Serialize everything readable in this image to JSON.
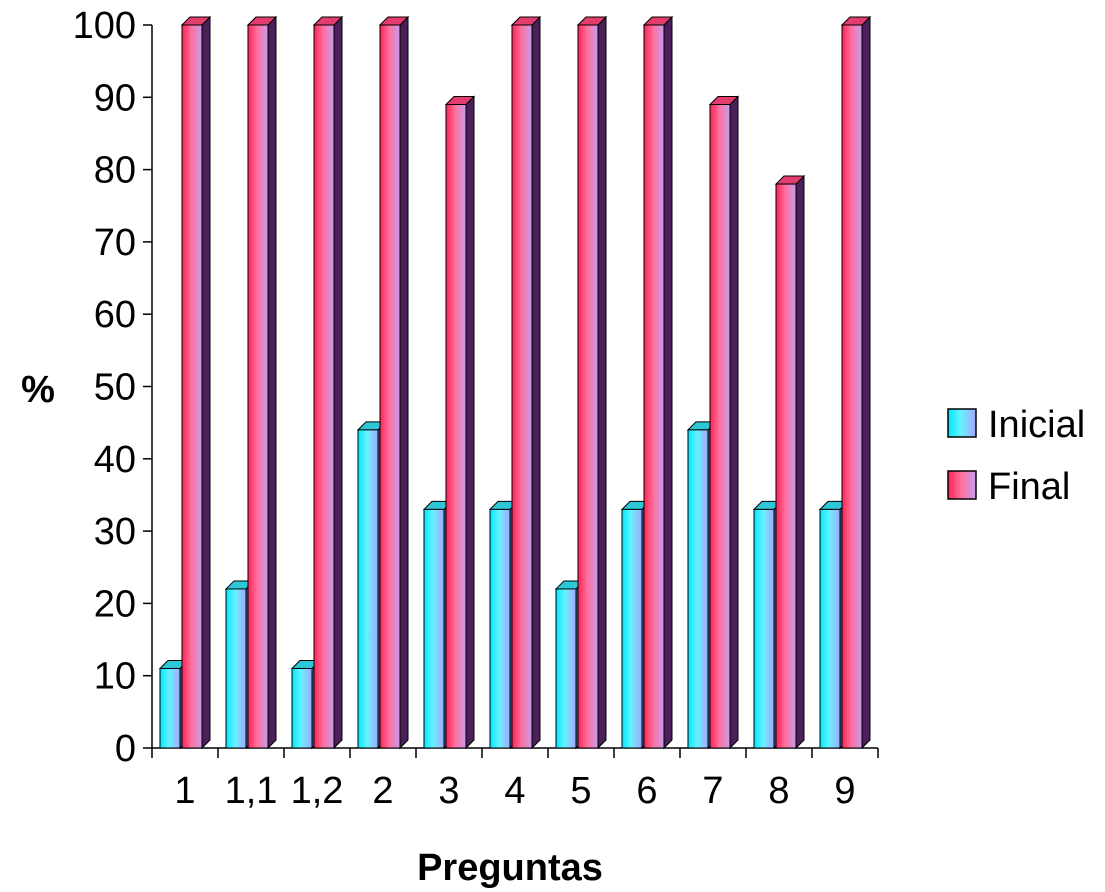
{
  "chart_data": {
    "type": "bar",
    "title": "",
    "xlabel": "Preguntas",
    "ylabel": "%",
    "categories": [
      "1",
      "1,1",
      "1,2",
      "2",
      "3",
      "4",
      "5",
      "6",
      "7",
      "8",
      "9"
    ],
    "series": [
      {
        "name": "Inicial",
        "values": [
          11,
          22,
          11,
          44,
          33,
          33,
          22,
          33,
          44,
          33,
          33
        ]
      },
      {
        "name": "Final",
        "values": [
          100,
          100,
          100,
          100,
          89,
          100,
          100,
          100,
          89,
          78,
          100
        ]
      }
    ],
    "ylim": [
      0,
      100
    ],
    "yticks": [
      "0",
      "10",
      "20",
      "30",
      "40",
      "50",
      "60",
      "70",
      "80",
      "90",
      "100"
    ],
    "grid": false,
    "legend_position": "right",
    "colors": {
      "Inicial": {
        "light": "#7ff7ff",
        "mid": "#33eeff",
        "dark": "#9b9bf5"
      },
      "Final": {
        "light": "#ff6f8e",
        "mid": "#f0457a",
        "dark": "#d9a0ee"
      }
    }
  }
}
